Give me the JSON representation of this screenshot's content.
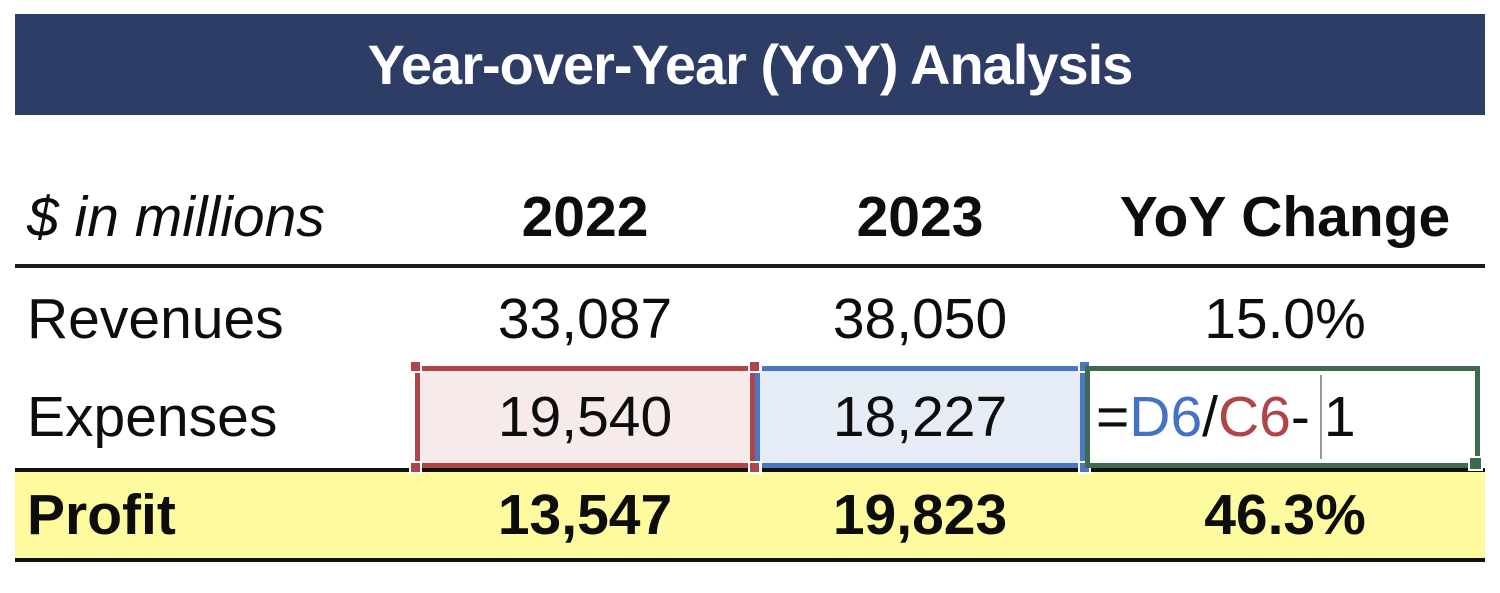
{
  "title": "Year-over-Year (YoY) Analysis",
  "table": {
    "columns": {
      "label": "$ in millions",
      "year1": "2022",
      "year2": "2023",
      "yoy": "YoY Change"
    },
    "rows": [
      {
        "label": "Revenues",
        "y2022": "33,087",
        "y2023": "38,050",
        "yoy": "15.0%"
      },
      {
        "label": "Expenses",
        "y2022": "19,540",
        "y2023": "18,227",
        "yoy": "=D6/C6-1"
      },
      {
        "label": "Profit",
        "y2022": "13,547",
        "y2023": "19,823",
        "yoy": "46.3%"
      }
    ]
  },
  "formula": {
    "full_text": "=D6/C6-1",
    "parts": [
      {
        "text": "=",
        "color": "#0d0d0d"
      },
      {
        "text": "D6",
        "color": "#4472C4"
      },
      {
        "text": "/",
        "color": "#0d0d0d"
      },
      {
        "text": "C6",
        "color": "#B04547"
      },
      {
        "text": "-",
        "color": "#0d0d0d"
      },
      {
        "text": "1",
        "color": "#0d0d0d"
      }
    ]
  },
  "colors": {
    "title_bar_bg": "#2E3D66",
    "title_text": "#FFFFFF",
    "profit_row_bg": "#FDFB9E",
    "selection_red_border": "#AE4547",
    "selection_red_fill": "#F6EAEA",
    "selection_blue_border": "#4A77C4",
    "selection_blue_fill": "#E6ECF6",
    "active_cell_green_border": "#3E6B4E",
    "ref_d6_text": "#4472C4",
    "ref_c6_text": "#B04547"
  }
}
